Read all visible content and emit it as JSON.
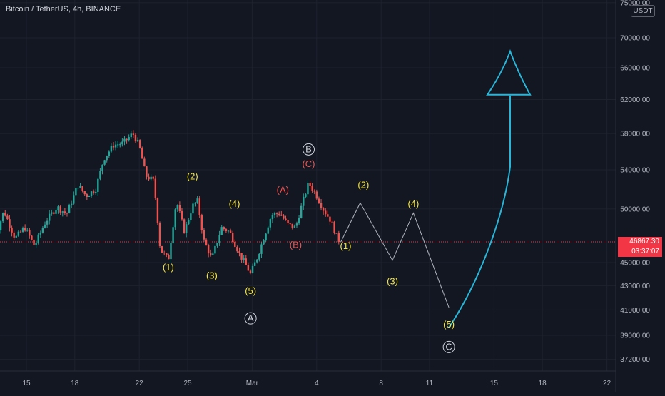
{
  "header": {
    "symbol": "Bitcoin / TetherUS, 4h, BINANCE"
  },
  "price_axis": {
    "unit": "USDT",
    "last_price": "46867.30",
    "countdown": "03:37:07"
  },
  "colors": {
    "bg": "#131722",
    "up": "#26a69a",
    "down": "#ef5350",
    "wave_yellow": "#f5e642",
    "wave_red": "#ef5350",
    "wave_white": "#d1d4dc",
    "projection": "#b2b5be",
    "arrow": "#29b6d8",
    "price_line": "#f23645"
  },
  "chart_data": {
    "type": "candlestick",
    "title": "Bitcoin / TetherUS, 4h, BINANCE",
    "y_scale": "log",
    "y_ticks": [
      "75000.00",
      "70000.00",
      "66000.00",
      "62000.00",
      "58000.00",
      "54000.00",
      "50000.00",
      "46867.30",
      "45000.00",
      "43000.00",
      "41000.00",
      "39000.00",
      "37200.00"
    ],
    "x_ticks": [
      "15",
      "18",
      "22",
      "25",
      "Mar",
      "4",
      "8",
      "11",
      "15",
      "18",
      "22"
    ],
    "x_tick_days": [
      15,
      18,
      22,
      25,
      29,
      33,
      37,
      40,
      44,
      47,
      51
    ],
    "last_price": 46867.3,
    "candle_path": [
      {
        "d": 13.0,
        "p": 46800
      },
      {
        "d": 13.6,
        "p": 49800
      },
      {
        "d": 14.3,
        "p": 47200
      },
      {
        "d": 14.9,
        "p": 48200
      },
      {
        "d": 15.5,
        "p": 46500
      },
      {
        "d": 16.2,
        "p": 48800
      },
      {
        "d": 16.9,
        "p": 50200
      },
      {
        "d": 17.5,
        "p": 49500
      },
      {
        "d": 18.2,
        "p": 52400
      },
      {
        "d": 18.7,
        "p": 51300
      },
      {
        "d": 19.3,
        "p": 52000
      },
      {
        "d": 19.8,
        "p": 55200
      },
      {
        "d": 20.4,
        "p": 56700
      },
      {
        "d": 21.0,
        "p": 56900
      },
      {
        "d": 21.6,
        "p": 58000
      },
      {
        "d": 22.0,
        "p": 56600
      },
      {
        "d": 22.4,
        "p": 53400
      },
      {
        "d": 22.9,
        "p": 52800
      },
      {
        "d": 23.3,
        "p": 46200
      },
      {
        "d": 23.8,
        "p": 45200
      },
      {
        "d": 24.3,
        "p": 50800
      },
      {
        "d": 24.8,
        "p": 47800
      },
      {
        "d": 25.3,
        "p": 50300
      },
      {
        "d": 25.6,
        "p": 50800
      },
      {
        "d": 26.0,
        "p": 47000
      },
      {
        "d": 26.5,
        "p": 45300
      },
      {
        "d": 27.1,
        "p": 48200
      },
      {
        "d": 27.6,
        "p": 47800
      },
      {
        "d": 28.2,
        "p": 45800
      },
      {
        "d": 28.6,
        "p": 44800
      },
      {
        "d": 28.9,
        "p": 44000
      },
      {
        "d": 29.3,
        "p": 45400
      },
      {
        "d": 29.8,
        "p": 47600
      },
      {
        "d": 30.2,
        "p": 49400
      },
      {
        "d": 30.7,
        "p": 49600
      },
      {
        "d": 31.2,
        "p": 48500
      },
      {
        "d": 31.7,
        "p": 48200
      },
      {
        "d": 32.1,
        "p": 50500
      },
      {
        "d": 32.5,
        "p": 52600
      },
      {
        "d": 32.9,
        "p": 51600
      },
      {
        "d": 33.4,
        "p": 50000
      },
      {
        "d": 33.9,
        "p": 48800
      },
      {
        "d": 34.3,
        "p": 47100
      },
      {
        "d": 34.5,
        "p": 46867
      }
    ],
    "projection": [
      {
        "d": 34.5,
        "p": 46867
      },
      {
        "d": 35.7,
        "p": 50600
      },
      {
        "d": 37.7,
        "p": 45200
      },
      {
        "d": 39.0,
        "p": 49600
      },
      {
        "d": 41.2,
        "p": 41200
      }
    ],
    "target_arrow": {
      "from": {
        "d": 41.2,
        "p": 39600
      },
      "to": {
        "d": 45.0,
        "p": 62500
      }
    },
    "annotations": [
      {
        "text": "(1)",
        "d": 23.8,
        "p": 44300,
        "color": "yellow"
      },
      {
        "text": "(2)",
        "d": 25.3,
        "p": 53000,
        "color": "yellow"
      },
      {
        "text": "(3)",
        "d": 26.5,
        "p": 43600,
        "color": "yellow"
      },
      {
        "text": "(4)",
        "d": 27.9,
        "p": 50200,
        "color": "yellow"
      },
      {
        "text": "(5)",
        "d": 28.9,
        "p": 42300,
        "color": "yellow"
      },
      {
        "text": "A",
        "d": 28.9,
        "p": 40100,
        "color": "white",
        "circled": true
      },
      {
        "text": "(A)",
        "d": 30.9,
        "p": 51600,
        "color": "red"
      },
      {
        "text": "(B)",
        "d": 31.7,
        "p": 46300,
        "color": "red"
      },
      {
        "text": "B",
        "d": 32.5,
        "p": 55900,
        "color": "white",
        "circled": true
      },
      {
        "text": "(C)",
        "d": 32.5,
        "p": 54300,
        "color": "red"
      },
      {
        "text": "(1)",
        "d": 34.8,
        "p": 46200,
        "color": "yellow"
      },
      {
        "text": "(2)",
        "d": 35.9,
        "p": 52100,
        "color": "yellow"
      },
      {
        "text": "(3)",
        "d": 37.7,
        "p": 43100,
        "color": "yellow"
      },
      {
        "text": "(4)",
        "d": 39.0,
        "p": 50200,
        "color": "yellow"
      },
      {
        "text": "(5)",
        "d": 41.2,
        "p": 39600,
        "color": "yellow"
      },
      {
        "text": "C",
        "d": 41.2,
        "p": 37900,
        "color": "white",
        "circled": true
      }
    ]
  }
}
